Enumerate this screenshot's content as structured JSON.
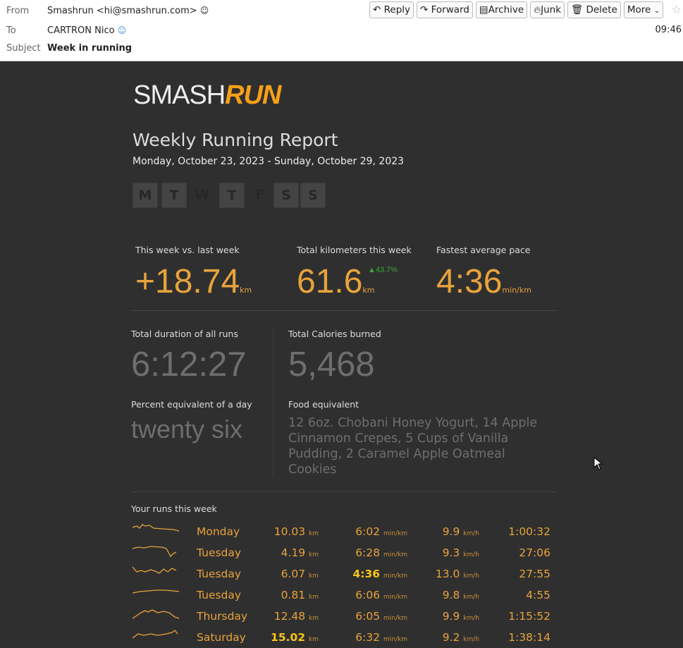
{
  "header": {
    "from_label": "From",
    "from_value": "Smashrun <hi@smashrun.com>",
    "to_label": "To",
    "to_value": "CARTRON Nico",
    "subject_label": "Subject",
    "subject_value": "Week in running",
    "time": "09:46",
    "buttons": [
      "Reply",
      "Forward",
      "Archive",
      "Junk",
      "Delete",
      "More"
    ],
    "button_icons": [
      "reply-icon",
      "forward-icon",
      "archive-icon",
      "junk-icon",
      "trash-icon",
      "chevron-down-icon"
    ]
  },
  "report": {
    "logo_left": "SMASH",
    "logo_right": "RUN",
    "title": "Weekly Running Report",
    "date_range": "Monday, October 23, 2023 - Sunday, October 29, 2023",
    "days": [
      {
        "letter": "M",
        "ran": true
      },
      {
        "letter": "T",
        "ran": true
      },
      {
        "letter": "W",
        "ran": false
      },
      {
        "letter": "T",
        "ran": true
      },
      {
        "letter": "F",
        "ran": false
      },
      {
        "letter": "S",
        "ran": true
      },
      {
        "letter": "S",
        "ran": true
      }
    ],
    "vs_label": "This week vs. last week",
    "vs_value": "+18.74",
    "vs_unit": "km",
    "total_label": "Total kilometers this week",
    "total_value": "61.6",
    "total_unit": "km",
    "total_change": "▲43.7%",
    "pace_label": "Fastest average pace",
    "pace_value": "4:36",
    "pace_unit": "min/km",
    "duration_label": "Total duration of all runs",
    "duration_value": "6:12:27",
    "calories_label": "Total Calories burned",
    "calories_value": "5,468",
    "percent_label": "Percent equivalent of a day",
    "percent_value": "twenty six",
    "food_label": "Food equivalent",
    "food_value": "12 6oz. Chobani Honey Yogurt, 14 Apple Cinnamon Crepes, 5 Cups of Vanilla Pudding, 2 Caramel Apple Oatmeal Cookies",
    "runs_label": "Your runs this week",
    "units": {
      "dist": "km",
      "pace": "min/km",
      "speed": "km/h"
    },
    "runs": [
      {
        "day": "Monday",
        "dist": "10.03",
        "pace": "6:02",
        "speed": "9.9",
        "duration": "1:00:32"
      },
      {
        "day": "Tuesday",
        "dist": "4.19",
        "pace": "6:28",
        "speed": "9.3",
        "duration": "27:06"
      },
      {
        "day": "Tuesday",
        "dist": "6.07",
        "pace": "4:36",
        "speed": "13.0",
        "duration": "27:55"
      },
      {
        "day": "Tuesday",
        "dist": "0.81",
        "pace": "6:06",
        "speed": "9.8",
        "duration": "4:55"
      },
      {
        "day": "Thursday",
        "dist": "12.48",
        "pace": "6:05",
        "speed": "9.9",
        "duration": "1:15:52"
      },
      {
        "day": "Saturday",
        "dist": "15.02",
        "pace": "6:32",
        "speed": "9.2",
        "duration": "1:38:14"
      }
    ]
  }
}
